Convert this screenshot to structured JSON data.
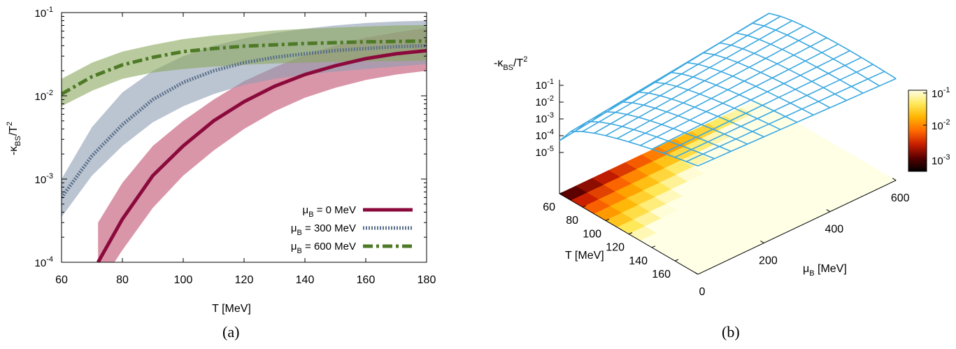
{
  "chart_data": [
    {
      "type": "line",
      "panel_caption": "(a)",
      "xlabel": "T [MeV]",
      "ylabel": "-κBS/T²",
      "xlim": [
        60,
        180
      ],
      "ylim": [
        0.0001,
        0.1
      ],
      "yscale": "log",
      "x_ticks": [
        "60",
        "80",
        "100",
        "120",
        "140",
        "160",
        "180"
      ],
      "y_ticks": [
        {
          "base": "10",
          "exp": "-4"
        },
        {
          "base": "10",
          "exp": "-3"
        },
        {
          "base": "10",
          "exp": "-2"
        },
        {
          "base": "10",
          "exp": "-1"
        }
      ],
      "legend_position": "bottom-right",
      "series": [
        {
          "name": "μB = 0 MeV",
          "legend_main": "μ",
          "legend_sub": "B",
          "legend_rest": " = 0 MeV",
          "color": "#8b0a3c",
          "band_color": "#c1506f",
          "dash": "solid",
          "x": [
            72,
            80,
            90,
            100,
            110,
            120,
            130,
            140,
            150,
            160,
            170,
            180
          ],
          "y": [
            0.0001,
            0.00033,
            0.0011,
            0.0025,
            0.005,
            0.0085,
            0.013,
            0.018,
            0.023,
            0.028,
            0.032,
            0.035
          ],
          "lower": [
            5e-05,
            0.00014,
            0.00045,
            0.0011,
            0.0022,
            0.004,
            0.0065,
            0.0095,
            0.0125,
            0.0155,
            0.018,
            0.02
          ],
          "upper": [
            0.0003,
            0.0009,
            0.0025,
            0.005,
            0.009,
            0.015,
            0.022,
            0.031,
            0.04,
            0.05,
            0.058,
            0.065
          ]
        },
        {
          "name": "μB = 300 MeV",
          "legend_main": "μ",
          "legend_sub": "B",
          "legend_rest": " = 300 MeV",
          "color": "#5a6f89",
          "band_color": "#8d9db3",
          "dash": "dotted",
          "x": [
            60,
            70,
            80,
            90,
            100,
            110,
            120,
            130,
            140,
            150,
            160,
            170,
            180
          ],
          "y": [
            0.0006,
            0.0019,
            0.0045,
            0.009,
            0.0145,
            0.02,
            0.025,
            0.029,
            0.032,
            0.035,
            0.037,
            0.039,
            0.04
          ],
          "lower": [
            0.00035,
            0.0011,
            0.0025,
            0.0048,
            0.0075,
            0.0105,
            0.0135,
            0.016,
            0.018,
            0.0195,
            0.021,
            0.0225,
            0.024
          ],
          "upper": [
            0.001,
            0.0042,
            0.011,
            0.02,
            0.03,
            0.04,
            0.049,
            0.057,
            0.064,
            0.07,
            0.075,
            0.078,
            0.08
          ]
        },
        {
          "name": "μB = 600 MeV",
          "legend_main": "μ",
          "legend_sub": "B",
          "legend_rest": " = 600 MeV",
          "color": "#4e7a27",
          "band_color": "#8aa95e",
          "dash": "dashdot",
          "x": [
            60,
            70,
            80,
            90,
            100,
            110,
            120,
            130,
            140,
            150,
            160,
            170,
            180
          ],
          "y": [
            0.0105,
            0.017,
            0.0235,
            0.029,
            0.034,
            0.037,
            0.0395,
            0.041,
            0.0425,
            0.0435,
            0.0445,
            0.045,
            0.0455
          ],
          "lower": [
            0.0075,
            0.0115,
            0.016,
            0.019,
            0.021,
            0.0225,
            0.0235,
            0.0245,
            0.025,
            0.0255,
            0.026,
            0.026,
            0.0265
          ],
          "upper": [
            0.016,
            0.025,
            0.034,
            0.041,
            0.048,
            0.053,
            0.057,
            0.061,
            0.064,
            0.066,
            0.068,
            0.07,
            0.071
          ]
        }
      ]
    },
    {
      "type": "surface",
      "panel_caption": "(b)",
      "zlabel": "-κBS/T²",
      "xlabel": "T [MeV]",
      "ylabel": "μB [MeV]",
      "x_ticks": [
        "60",
        "80",
        "100",
        "120",
        "140",
        "160"
      ],
      "y_ticks": [
        "0",
        "200",
        "400",
        "600"
      ],
      "z_ticks": [
        {
          "base": "10",
          "exp": "-1"
        },
        {
          "base": "10",
          "exp": "-2"
        },
        {
          "base": "10",
          "exp": "-3"
        },
        {
          "base": "10",
          "exp": "-4"
        },
        {
          "base": "10",
          "exp": "-5"
        }
      ],
      "colorbar_ticks": [
        {
          "base": "10",
          "exp": "-1"
        },
        {
          "base": "10",
          "exp": "-2"
        },
        {
          "base": "10",
          "exp": "-3"
        }
      ],
      "xlim": [
        60,
        180
      ],
      "ylim": [
        0,
        600
      ],
      "zlim": [
        1e-05,
        0.1
      ],
      "surface_color": "#3aa8e0",
      "colormap": [
        "#000000",
        "#5a0000",
        "#c81e00",
        "#ff6a00",
        "#ffb400",
        "#ffe85a",
        "#ffffe6"
      ]
    }
  ]
}
